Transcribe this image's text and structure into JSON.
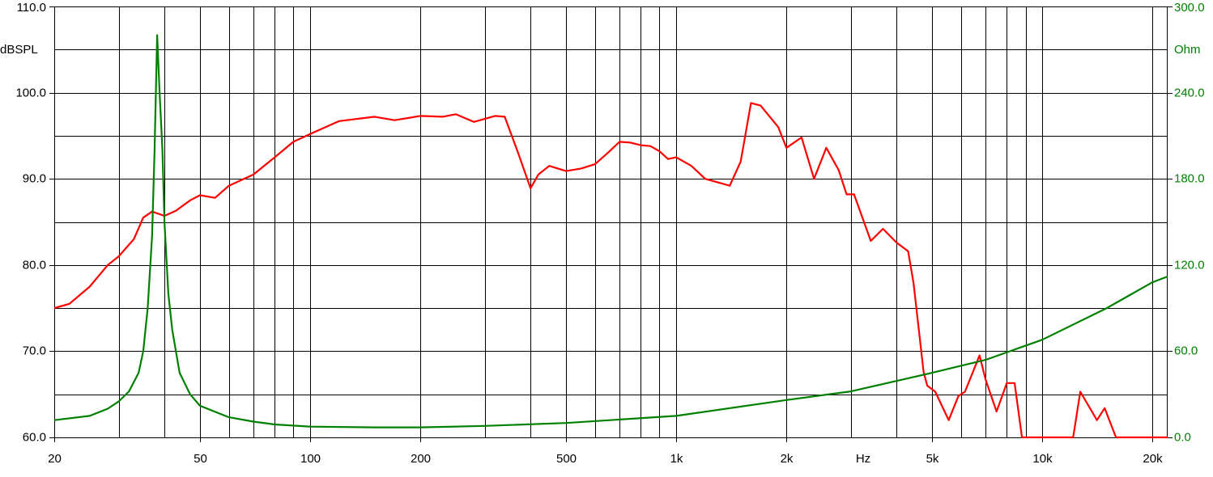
{
  "chart_data": {
    "type": "line",
    "xscale": "log",
    "grid": true,
    "xlabel": "Hz",
    "ylabel": "dBSPL",
    "y2label": "Ohm",
    "xlim": [
      20,
      22000
    ],
    "xticks": [
      20,
      50,
      100,
      200,
      500,
      {
        "value": 1000,
        "label": "1k"
      },
      {
        "value": 2000,
        "label": "2k"
      },
      {
        "value": 5000,
        "label": "5k"
      },
      {
        "value": 10000,
        "label": "10k"
      },
      {
        "value": 20000,
        "label": "20k"
      }
    ],
    "xminor": [
      30,
      40,
      60,
      70,
      80,
      90,
      300,
      400,
      600,
      700,
      800,
      900,
      3000,
      4000,
      6000,
      7000,
      8000,
      9000
    ],
    "ylim": [
      60,
      110
    ],
    "yticks": [
      {
        "value": 60,
        "label": "60.0"
      },
      {
        "value": 70,
        "label": "70.0"
      },
      {
        "value": 80,
        "label": "80.0"
      },
      {
        "value": 90,
        "label": "90.0"
      },
      {
        "value": 100,
        "label": "100.0"
      },
      {
        "value": 110,
        "label": "110.0"
      }
    ],
    "yminor": [
      65,
      75,
      85,
      95,
      105
    ],
    "y2lim": [
      0,
      300
    ],
    "y2ticks": [
      {
        "value": 0,
        "label": "0.0"
      },
      {
        "value": 60,
        "label": "60.0"
      },
      {
        "value": 120,
        "label": "120.0"
      },
      {
        "value": 180,
        "label": "180.0"
      },
      {
        "value": 240,
        "label": "240.0"
      },
      {
        "value": 300,
        "label": "300.0"
      }
    ],
    "series": [
      {
        "color": "#ff0000",
        "x": [
          20,
          22,
          25,
          28,
          30,
          33,
          35,
          37,
          40,
          43,
          47,
          50,
          55,
          60,
          70,
          80,
          90,
          100,
          120,
          150,
          170,
          200,
          230,
          250,
          280,
          320,
          340,
          370,
          400,
          420,
          450,
          500,
          550,
          600,
          650,
          700,
          750,
          800,
          850,
          900,
          950,
          1000,
          1100,
          1200,
          1400,
          1500,
          1600,
          1700,
          1900,
          2000,
          2200,
          2380,
          2570,
          2780,
          2920,
          3060,
          3400,
          3670,
          4000,
          4300,
          4450,
          4740,
          4850,
          5100,
          5550,
          5900,
          6150,
          6740,
          7000,
          7500,
          8000,
          8400,
          8800,
          12140,
          12700,
          14100,
          14800,
          15900,
          22000
        ],
        "values": [
          75,
          75.5,
          77.5,
          80,
          81,
          83,
          85.5,
          86.2,
          85.7,
          86.3,
          87.5,
          88.1,
          87.8,
          89.2,
          90.5,
          92.5,
          94.3,
          95.2,
          96.7,
          97.2,
          96.8,
          97.3,
          97.2,
          97.5,
          96.6,
          97.3,
          97.2,
          93,
          88.9,
          90.5,
          91.5,
          90.9,
          91.2,
          91.7,
          93,
          94.3,
          94.2,
          93.9,
          93.8,
          93.2,
          92.3,
          92.5,
          91.5,
          90,
          89.2,
          92,
          98.8,
          98.5,
          96,
          93.6,
          94.8,
          90,
          93.6,
          91,
          88.2,
          88.2,
          82.8,
          84.2,
          82.6,
          81.6,
          77.9,
          67.6,
          66,
          65.3,
          62,
          64.8,
          65.3,
          69.5,
          66.7,
          63,
          66.3,
          66.3,
          60,
          60,
          65.3,
          62,
          63.4,
          60,
          60
        ]
      },
      {
        "color": "#008000",
        "axis": "y2",
        "x": [
          20,
          25,
          28,
          30,
          32,
          34,
          35,
          36,
          37,
          37.6,
          38.2,
          38.8,
          39.5,
          40,
          41,
          42,
          44,
          47,
          50,
          60,
          70,
          80,
          100,
          150,
          200,
          300,
          500,
          1000,
          2000,
          3000,
          5000,
          7000,
          10000,
          15000,
          20000,
          22000
        ],
        "values": [
          12,
          15,
          20,
          25,
          32,
          45,
          60,
          90,
          140,
          200,
          280,
          240,
          200,
          150,
          100,
          75,
          45,
          30,
          22,
          14,
          11,
          9,
          7.5,
          7,
          7,
          8,
          10,
          15,
          26,
          32,
          45,
          54,
          68,
          90,
          108,
          112
        ]
      }
    ]
  }
}
